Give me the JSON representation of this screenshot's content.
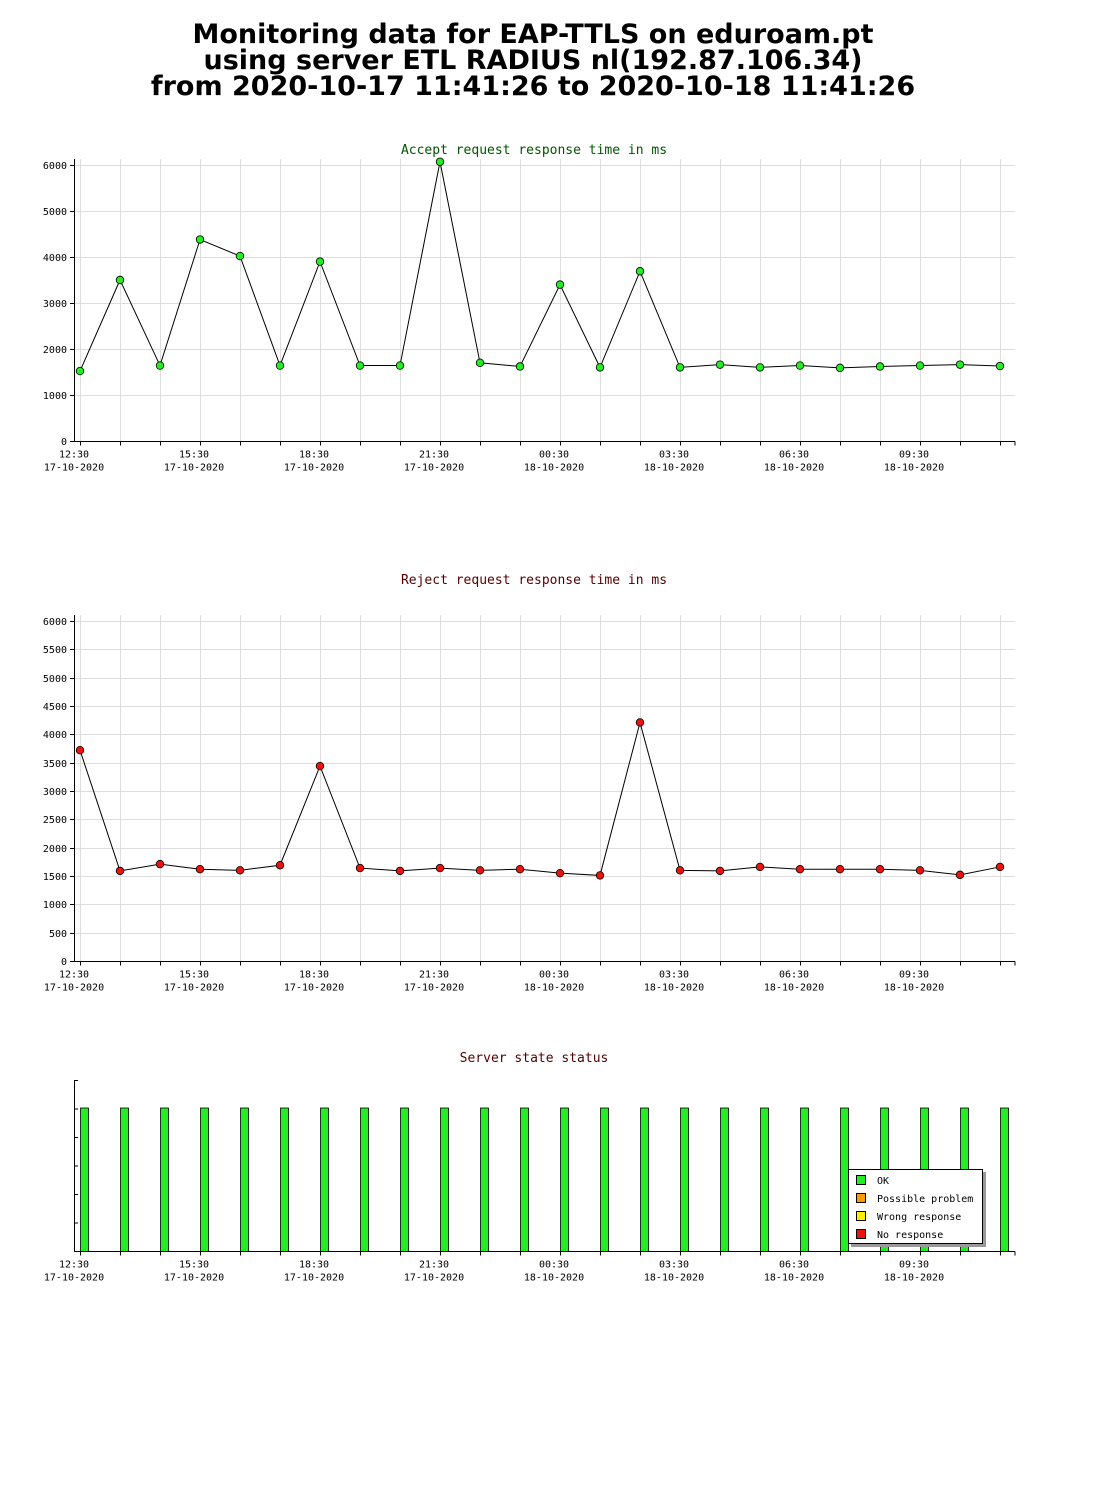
{
  "header": {
    "title_lines": [
      "Monitoring data for EAP-TTLS on eduroam.pt",
      "using server ETL RADIUS nl(192.87.106.34)",
      "from 2020-10-17 11:41:26 to 2020-10-18 11:41:26"
    ]
  },
  "colors": {
    "accept_title": "#005500",
    "reject_title": "#550000",
    "status_title": "#550000",
    "accept_marker": "#22ee22",
    "reject_marker": "#ee1111",
    "ok": "#22ee22",
    "possible_problem": "#ff9900",
    "wrong_response": "#ffee00",
    "no_response": "#ee1111"
  },
  "chart_data": [
    {
      "type": "line",
      "title": "Accept request response time in ms",
      "x_time_offsets_hours": [
        0,
        1,
        2,
        3,
        4,
        5,
        6,
        7,
        8,
        9,
        10,
        11,
        12,
        13,
        14,
        15,
        16,
        17,
        18,
        19,
        20,
        21,
        22,
        23
      ],
      "x_start": "2020-10-17 12:30",
      "ylim": [
        0,
        6000
      ],
      "yticks": [
        0,
        1000,
        2000,
        3000,
        4000,
        5000,
        6000
      ],
      "xtick_labels": [
        {
          "time": "12:30",
          "date": "17-10-2020"
        },
        {
          "time": "15:30",
          "date": "17-10-2020"
        },
        {
          "time": "18:30",
          "date": "17-10-2020"
        },
        {
          "time": "21:30",
          "date": "17-10-2020"
        },
        {
          "time": "00:30",
          "date": "18-10-2020"
        },
        {
          "time": "03:30",
          "date": "18-10-2020"
        },
        {
          "time": "06:30",
          "date": "18-10-2020"
        },
        {
          "time": "09:30",
          "date": "18-10-2020"
        }
      ],
      "grid": true,
      "values": [
        1520,
        3500,
        1640,
        4380,
        4020,
        1640,
        3900,
        1640,
        1640,
        6070,
        1700,
        1620,
        3400,
        1600,
        3690,
        1600,
        1660,
        1600,
        1640,
        1590,
        1620,
        1640,
        1660,
        1630
      ]
    },
    {
      "type": "line",
      "title": "Reject request response time in ms",
      "x_start": "2020-10-17 12:30",
      "ylim": [
        0,
        6000
      ],
      "yticks": [
        0,
        500,
        1000,
        1500,
        2000,
        2500,
        3000,
        3500,
        4000,
        4500,
        5000,
        5500,
        6000
      ],
      "xtick_labels": [
        {
          "time": "12:30",
          "date": "17-10-2020"
        },
        {
          "time": "15:30",
          "date": "17-10-2020"
        },
        {
          "time": "18:30",
          "date": "17-10-2020"
        },
        {
          "time": "21:30",
          "date": "17-10-2020"
        },
        {
          "time": "00:30",
          "date": "18-10-2020"
        },
        {
          "time": "03:30",
          "date": "18-10-2020"
        },
        {
          "time": "06:30",
          "date": "18-10-2020"
        },
        {
          "time": "09:30",
          "date": "18-10-2020"
        }
      ],
      "grid": true,
      "values": [
        3720,
        1590,
        1710,
        1620,
        1600,
        1690,
        3440,
        1640,
        1590,
        1640,
        1600,
        1620,
        1550,
        1510,
        4210,
        1600,
        1590,
        1660,
        1620,
        1620,
        1620,
        1600,
        1520,
        1660
      ]
    },
    {
      "type": "bar",
      "title": "Server state status",
      "states": [
        "OK",
        "OK",
        "OK",
        "OK",
        "OK",
        "OK",
        "OK",
        "OK",
        "OK",
        "OK",
        "OK",
        "OK",
        "OK",
        "OK",
        "OK",
        "OK",
        "OK",
        "OK",
        "OK",
        "OK",
        "OK",
        "OK",
        "OK",
        "OK"
      ],
      "xtick_labels": [
        {
          "time": "12:30",
          "date": "17-10-2020"
        },
        {
          "time": "15:30",
          "date": "17-10-2020"
        },
        {
          "time": "18:30",
          "date": "17-10-2020"
        },
        {
          "time": "21:30",
          "date": "17-10-2020"
        },
        {
          "time": "00:30",
          "date": "18-10-2020"
        },
        {
          "time": "03:30",
          "date": "18-10-2020"
        },
        {
          "time": "06:30",
          "date": "18-10-2020"
        },
        {
          "time": "09:30",
          "date": "18-10-2020"
        }
      ],
      "legend": {
        "placement": "bottom-right",
        "entries": [
          {
            "label": "OK",
            "color_key": "ok"
          },
          {
            "label": "Possible problem",
            "color_key": "possible_problem"
          },
          {
            "label": "Wrong response",
            "color_key": "wrong_response"
          },
          {
            "label": "No response",
            "color_key": "no_response"
          }
        ]
      }
    }
  ]
}
